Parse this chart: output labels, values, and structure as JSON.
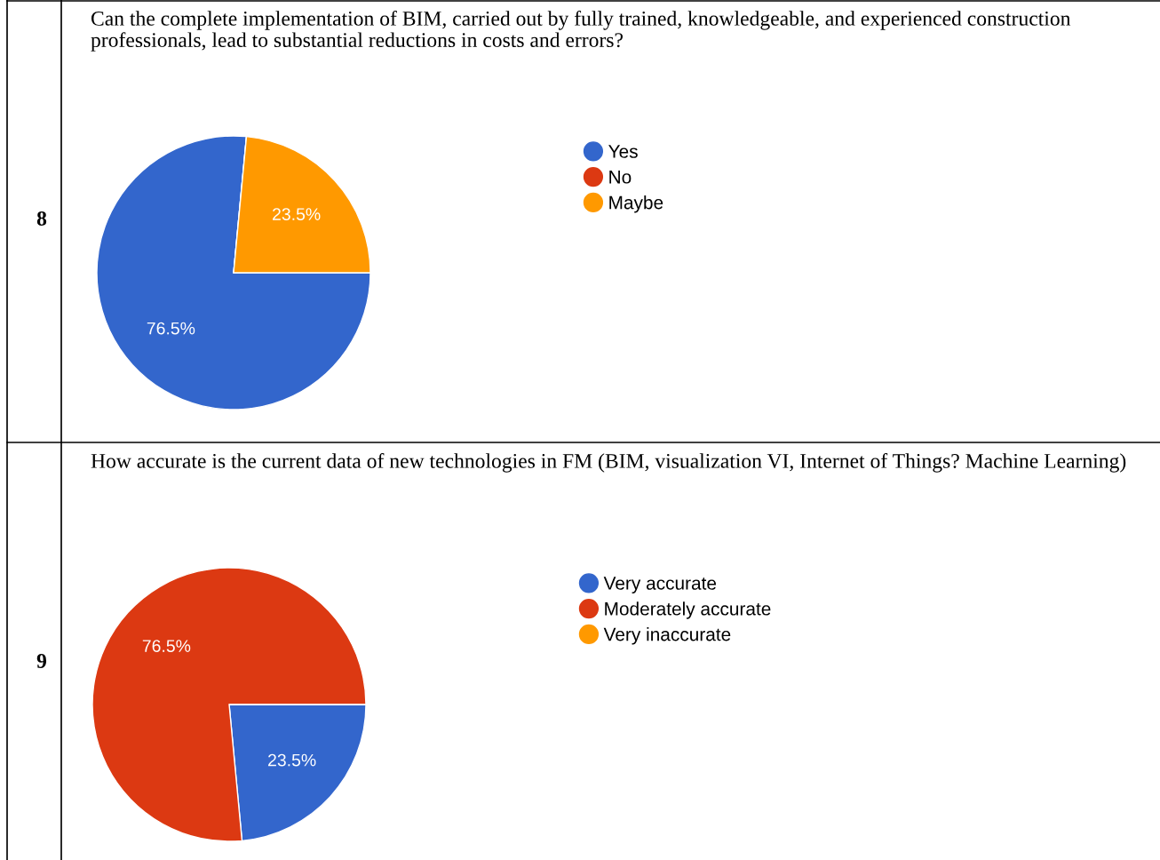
{
  "chart_data": [
    {
      "type": "pie",
      "title": "Can the complete implementation of BIM, carried out by fully trained, knowledgeable, and experienced construction professionals, lead to substantial reductions in costs and errors?",
      "categories": [
        "Yes",
        "No",
        "Maybe"
      ],
      "values": [
        76.5,
        0,
        23.5
      ],
      "colors": [
        "#3366cc",
        "#dc3912",
        "#ff9900"
      ],
      "value_labels": [
        "76.5%",
        null,
        "23.5%"
      ],
      "legend": "right",
      "annotations": [
        "8"
      ]
    },
    {
      "type": "pie",
      "title": "How accurate is the current data of new technologies in FM (BIM, visualization VI, Internet of Things? Machine Learning)",
      "categories": [
        "Very accurate",
        "Moderately accurate",
        "Very inaccurate"
      ],
      "values": [
        23.5,
        76.5,
        0
      ],
      "colors": [
        "#3366cc",
        "#dc3912",
        "#ff9900"
      ],
      "value_labels": [
        "23.5%",
        "76.5%",
        null
      ],
      "legend": "right",
      "annotations": [
        "9"
      ]
    }
  ]
}
